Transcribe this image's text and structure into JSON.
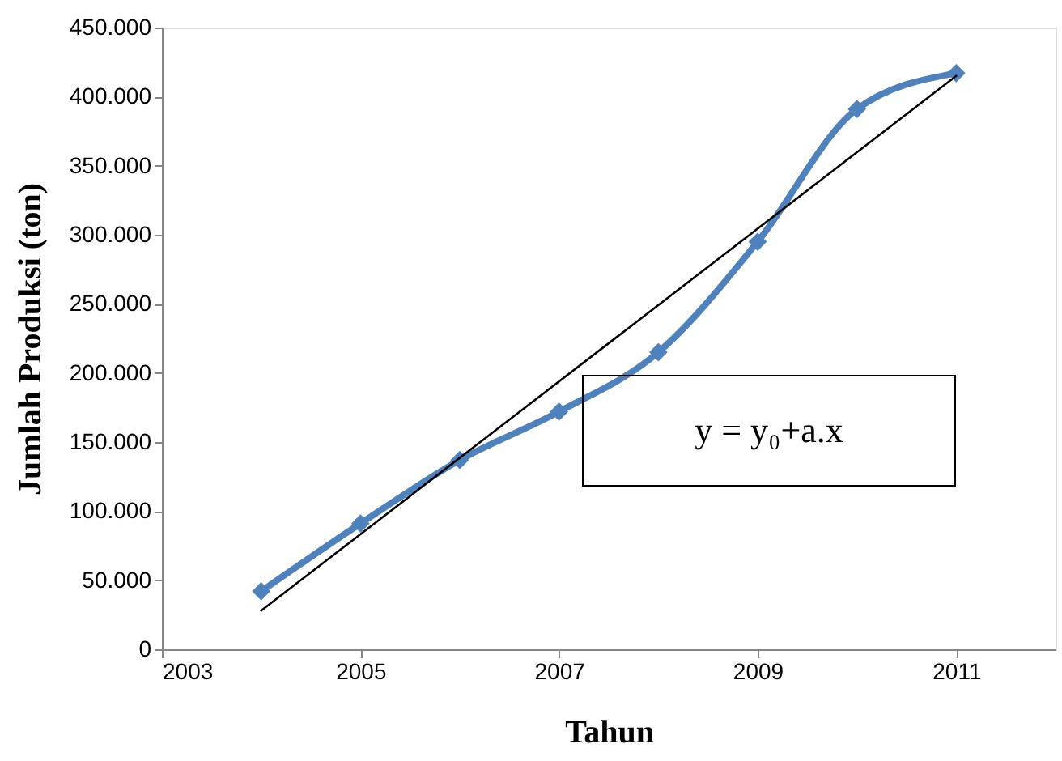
{
  "chart_data": {
    "type": "line",
    "xlabel": "Tahun",
    "ylabel": "Jumlah Produksi (ton)",
    "xlim": [
      2003,
      2012
    ],
    "xticks": [
      2003,
      2005,
      2007,
      2009,
      2011
    ],
    "ylim": [
      0,
      450000
    ],
    "yticks": [
      0,
      {
        "value": 50000,
        "label": "50.000"
      },
      {
        "value": 100000,
        "label": "100.000"
      },
      {
        "value": 150000,
        "label": "150.000"
      },
      {
        "value": 200000,
        "label": "200.000"
      },
      {
        "value": 250000,
        "label": "250.000"
      },
      {
        "value": 300000,
        "label": "300.000"
      },
      {
        "value": 350000,
        "label": "350.000"
      },
      {
        "value": 400000,
        "label": "400.000"
      },
      {
        "value": 450000,
        "label": "450.000"
      }
    ],
    "x": [
      2004,
      2005,
      2006,
      2007,
      2008,
      2009,
      2010,
      2011
    ],
    "series": [
      {
        "color": "#4f81bd",
        "marker": "diamond",
        "values": [
          42000,
          91000,
          137000,
          172000,
          215000,
          295000,
          391000,
          417000
        ]
      },
      {
        "type": "line",
        "color": "#000000",
        "marker": "none",
        "x": [
          2004,
          2011
        ],
        "values": [
          28000,
          415000
        ]
      }
    ],
    "annotations": [
      "y = y₀+a.x"
    ],
    "grid": false
  }
}
